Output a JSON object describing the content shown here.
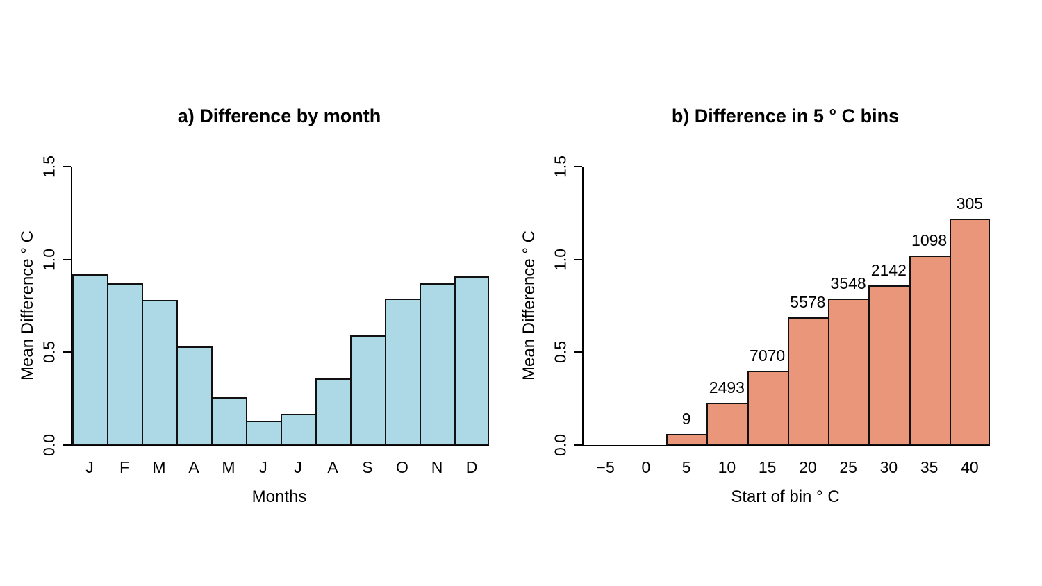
{
  "page": {
    "background": "#ffffff",
    "text_color": "#000000"
  },
  "chart_data": [
    {
      "id": "difference-by-month",
      "type": "bar",
      "title": "a) Difference by month",
      "xlabel": "Months",
      "ylabel": "Mean Difference ° C",
      "categories": [
        "J",
        "F",
        "M",
        "A",
        "M",
        "J",
        "J",
        "A",
        "S",
        "O",
        "N",
        "D"
      ],
      "values": [
        0.92,
        0.87,
        0.78,
        0.53,
        0.26,
        0.13,
        0.17,
        0.36,
        0.59,
        0.79,
        0.87,
        0.91
      ],
      "yticks": [
        "0.0",
        "0.5",
        "1.0",
        "1.5"
      ],
      "ylim": [
        0,
        1.5
      ],
      "bar_color": "#ADD8E6",
      "bar_border_color": "#111111",
      "grid": false,
      "legend": "none",
      "bars_contiguous": true
    },
    {
      "id": "difference-in-5c-bins",
      "type": "bar",
      "title": "b) Difference in 5 ° C bins",
      "xlabel": "Start of bin ° C",
      "ylabel": "Mean Difference ° C",
      "categories": [
        "5",
        "10",
        "15",
        "20",
        "25",
        "30",
        "35",
        "40"
      ],
      "values": [
        0.06,
        0.23,
        0.4,
        0.69,
        0.79,
        0.86,
        1.02,
        1.22
      ],
      "bar_labels": [
        "9",
        "2493",
        "7070",
        "5578",
        "3548",
        "2142",
        "1098",
        "305"
      ],
      "xticks": [
        "−5",
        "0",
        "5",
        "10",
        "15",
        "20",
        "25",
        "30",
        "35",
        "40"
      ],
      "xtick_values": [
        -5,
        0,
        5,
        10,
        15,
        20,
        25,
        30,
        35,
        40
      ],
      "bin_start": 2.5,
      "bin_width": 5,
      "yticks": [
        "0.0",
        "0.5",
        "1.0",
        "1.5"
      ],
      "ylim": [
        0,
        1.5
      ],
      "bar_color": "#E9967A",
      "bar_border_color": "#111111",
      "grid": false,
      "legend": "none",
      "bars_contiguous": true
    }
  ]
}
